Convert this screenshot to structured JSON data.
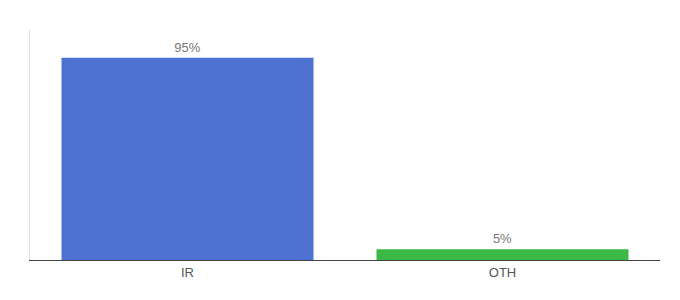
{
  "chart_data": {
    "type": "bar",
    "categories": [
      "IR",
      "OTH"
    ],
    "values": [
      95,
      5
    ],
    "value_labels": [
      "95%",
      "5%"
    ],
    "data_labels": true,
    "colors": [
      "#4d72d1",
      "#3cb944"
    ],
    "ylim": [
      0,
      108
    ],
    "grid": false,
    "tick_labels": "x"
  }
}
